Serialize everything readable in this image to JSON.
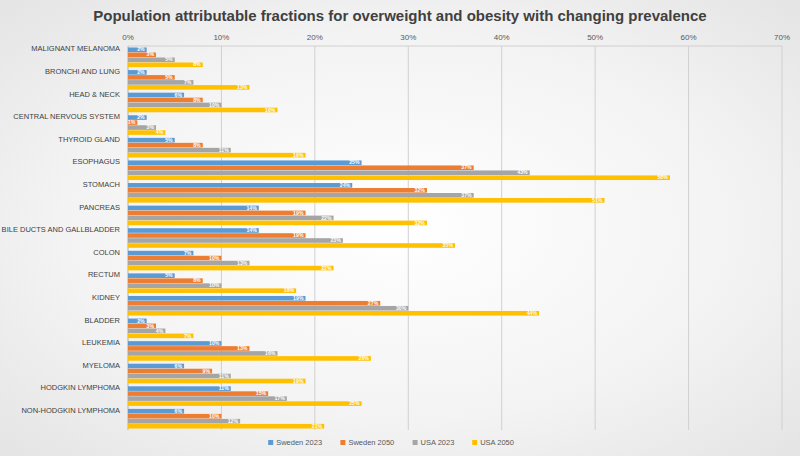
{
  "chart_data": {
    "type": "bar",
    "orientation": "horizontal",
    "title": "Population attributable fractions for overweight and obesity with changing prevalence",
    "categories": [
      "MALIGNANT MELANOMA",
      "BRONCHI AND LUNG",
      "HEAD & NECK",
      "CENTRAL NERVOUS SYSTEM",
      "THYROID GLAND",
      "ESOPHAGUS",
      "STOMACH",
      "PANCREAS",
      "LIVER, BILE DUCTS AND GALLBLADDER",
      "COLON",
      "RECTUM",
      "KIDNEY",
      "BLADDER",
      "LEUKEMIA",
      "MYELOMA",
      "HODGKIN LYMPHOMA",
      "NON-HODGKIN LYMPHOMA"
    ],
    "series": [
      {
        "name": "Sweden 2023",
        "color": "#5b9bd5",
        "values": [
          2,
          2,
          6,
          2,
          5,
          25,
          24,
          14,
          14,
          7,
          5,
          19,
          2,
          10,
          6,
          11,
          6
        ],
        "value_labels": [
          "2%",
          "2%",
          "6%",
          "2%",
          "5%",
          "25%",
          "24%",
          "14%",
          "14%",
          "7%",
          "5%",
          "19%",
          "2%",
          "10%",
          "6%",
          "11%",
          "6%"
        ]
      },
      {
        "name": "Sweden 2050",
        "color": "#ed7d31",
        "values": [
          3,
          5,
          8,
          1,
          8,
          37,
          32,
          19,
          19,
          10,
          8,
          27,
          3,
          13,
          9,
          15,
          10
        ],
        "value_labels": [
          "3%",
          "5%",
          "8%",
          "1%",
          "8%",
          "37%",
          "32%",
          "19%",
          "19%",
          "10%",
          "8%",
          "27%",
          "3%",
          "13%",
          "9%",
          "15%",
          "10%"
        ]
      },
      {
        "name": "USA 2023",
        "color": "#a5a5a5",
        "values": [
          5,
          7,
          10,
          3,
          11,
          43,
          37,
          22,
          23,
          13,
          10,
          30,
          4,
          16,
          11,
          17,
          12
        ],
        "value_labels": [
          "5%",
          "7%",
          "10%",
          "3%",
          "11%",
          "43%",
          "37%",
          "22%",
          "23%",
          "13%",
          "10%",
          "30%",
          "4%",
          "16%",
          "11%",
          "17%",
          "12%"
        ]
      },
      {
        "name": "USA 2050",
        "color": "#ffc000",
        "values": [
          8,
          13,
          16,
          4,
          19,
          58,
          51,
          32,
          35,
          22,
          18,
          44,
          7,
          26,
          19,
          25,
          21
        ],
        "value_labels": [
          "8%",
          "13%",
          "16%",
          "4%",
          "19%",
          "58%",
          "51%",
          "32%",
          "35%",
          "22%",
          "18%",
          "44%",
          "7%",
          "26%",
          "19%",
          "25%",
          "21%"
        ]
      }
    ],
    "xlim": [
      0,
      70
    ],
    "xticks": [
      {
        "value": 0,
        "label": "0%"
      },
      {
        "value": 10,
        "label": "10%"
      },
      {
        "value": 20,
        "label": "20%"
      },
      {
        "value": 30,
        "label": "30%"
      },
      {
        "value": 40,
        "label": "40%"
      },
      {
        "value": 50,
        "label": "50%"
      },
      {
        "value": 60,
        "label": "60%"
      },
      {
        "value": 70,
        "label": "70%"
      }
    ],
    "grid": true,
    "data_labels": true,
    "legend": "bottom"
  }
}
